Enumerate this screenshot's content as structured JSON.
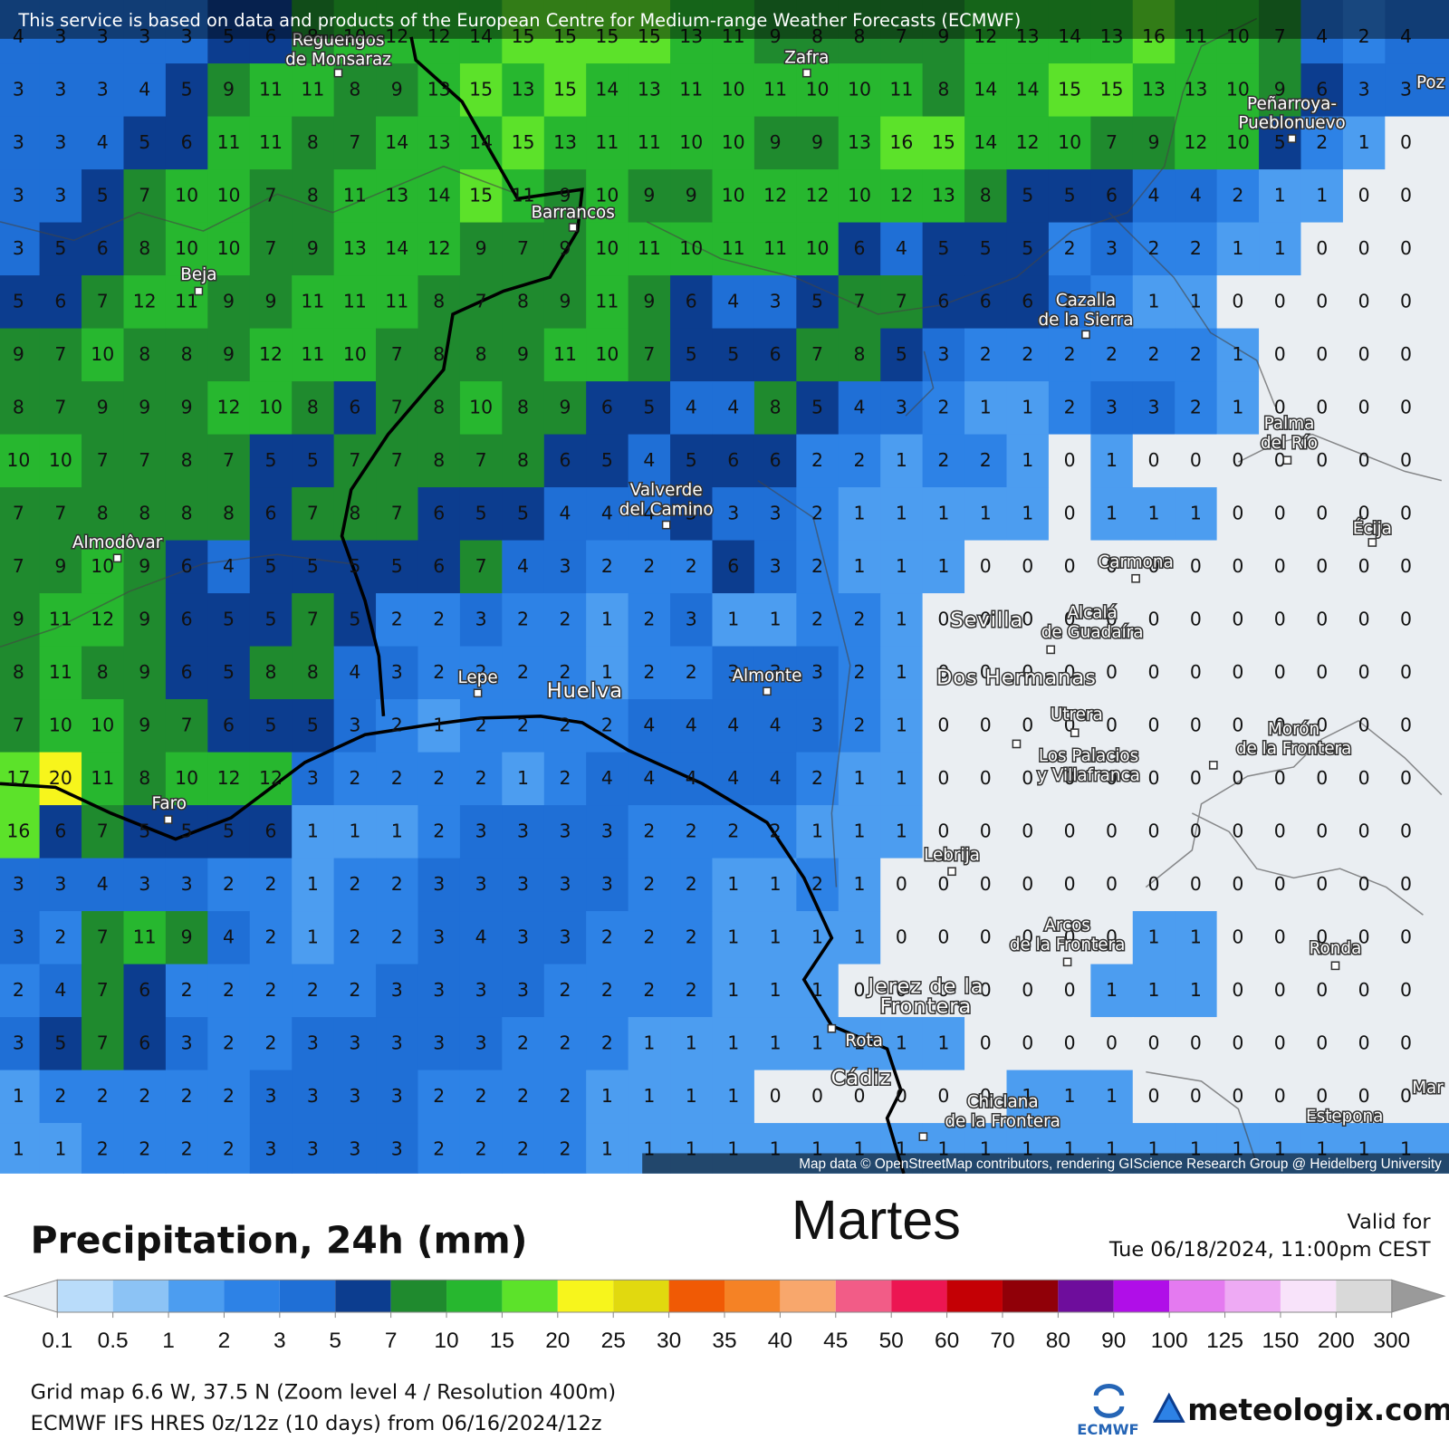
{
  "header": {
    "attribution": "This service is based on data and products of the European Centre for Medium-range Weather Forecasts (ECMWF)"
  },
  "map": {
    "credit": "Map data © OpenStreetMap contributors, rendering GIScience Research Group @ Heidelberg University",
    "grid": [
      [
        4,
        3,
        3,
        3,
        3,
        5,
        6,
        8,
        10,
        12,
        12,
        14,
        15,
        15,
        15,
        15,
        13,
        11,
        9,
        8,
        8,
        7,
        9,
        12,
        13,
        14,
        13,
        16,
        11,
        10,
        7,
        4,
        2,
        4
      ],
      [
        3,
        3,
        3,
        4,
        5,
        9,
        11,
        11,
        8,
        9,
        13,
        15,
        13,
        15,
        14,
        13,
        11,
        10,
        11,
        10,
        10,
        11,
        8,
        14,
        14,
        15,
        15,
        13,
        13,
        10,
        9,
        6,
        3,
        3
      ],
      [
        3,
        3,
        4,
        5,
        6,
        11,
        11,
        8,
        7,
        14,
        13,
        14,
        15,
        13,
        11,
        11,
        10,
        10,
        9,
        9,
        13,
        16,
        15,
        14,
        12,
        10,
        7,
        9,
        12,
        10,
        5,
        2,
        1,
        0
      ],
      [
        3,
        3,
        5,
        7,
        10,
        10,
        7,
        8,
        11,
        13,
        14,
        15,
        11,
        9,
        10,
        9,
        9,
        10,
        12,
        12,
        10,
        12,
        13,
        8,
        5,
        5,
        6,
        4,
        4,
        2,
        1,
        1,
        0,
        0
      ],
      [
        3,
        5,
        6,
        8,
        10,
        10,
        7,
        9,
        13,
        14,
        12,
        9,
        7,
        9,
        10,
        11,
        10,
        11,
        11,
        10,
        6,
        4,
        5,
        5,
        5,
        2,
        3,
        2,
        2,
        1,
        1,
        0,
        0,
        0
      ],
      [
        5,
        6,
        7,
        12,
        11,
        9,
        9,
        11,
        11,
        11,
        8,
        7,
        8,
        9,
        11,
        9,
        6,
        4,
        3,
        5,
        7,
        7,
        6,
        6,
        6,
        3,
        2,
        1,
        1,
        0,
        0,
        0,
        0,
        0
      ],
      [
        9,
        7,
        10,
        8,
        8,
        9,
        12,
        11,
        10,
        7,
        8,
        8,
        9,
        11,
        10,
        7,
        5,
        5,
        6,
        7,
        8,
        5,
        3,
        2,
        2,
        2,
        2,
        2,
        2,
        1,
        0,
        0,
        0,
        0
      ],
      [
        8,
        7,
        9,
        9,
        9,
        12,
        10,
        8,
        6,
        7,
        8,
        10,
        8,
        9,
        6,
        5,
        4,
        4,
        8,
        5,
        4,
        3,
        2,
        1,
        1,
        2,
        3,
        3,
        2,
        1,
        0,
        0,
        0,
        0
      ],
      [
        10,
        10,
        7,
        7,
        8,
        7,
        5,
        5,
        7,
        7,
        8,
        7,
        8,
        6,
        5,
        4,
        5,
        6,
        6,
        2,
        2,
        1,
        2,
        2,
        1,
        0,
        1,
        0,
        0,
        0,
        0,
        0,
        0,
        0
      ],
      [
        7,
        7,
        8,
        8,
        8,
        8,
        6,
        7,
        8,
        7,
        6,
        5,
        5,
        4,
        4,
        4,
        5,
        3,
        3,
        2,
        1,
        1,
        1,
        1,
        1,
        0,
        1,
        1,
        1,
        0,
        0,
        0,
        0,
        0
      ],
      [
        7,
        9,
        10,
        9,
        6,
        4,
        5,
        5,
        5,
        5,
        6,
        7,
        4,
        3,
        2,
        2,
        2,
        6,
        3,
        2,
        1,
        1,
        1,
        0,
        0,
        0,
        0,
        0,
        0,
        0,
        0,
        0,
        0,
        0
      ],
      [
        9,
        11,
        12,
        9,
        6,
        5,
        5,
        7,
        5,
        2,
        2,
        3,
        2,
        2,
        1,
        2,
        3,
        1,
        1,
        2,
        2,
        1,
        0,
        0,
        0,
        0,
        0,
        0,
        0,
        0,
        0,
        0,
        0,
        0
      ],
      [
        8,
        11,
        8,
        9,
        6,
        5,
        8,
        8,
        4,
        3,
        2,
        2,
        2,
        2,
        1,
        2,
        2,
        3,
        3,
        3,
        2,
        1,
        0,
        0,
        0,
        0,
        0,
        0,
        0,
        0,
        0,
        0,
        0,
        0
      ],
      [
        7,
        10,
        10,
        9,
        7,
        6,
        5,
        5,
        3,
        2,
        1,
        2,
        2,
        2,
        2,
        4,
        4,
        4,
        4,
        3,
        2,
        1,
        0,
        0,
        0,
        0,
        0,
        0,
        0,
        0,
        0,
        0,
        0,
        0
      ],
      [
        17,
        20,
        11,
        8,
        10,
        12,
        12,
        3,
        2,
        2,
        2,
        2,
        1,
        2,
        4,
        4,
        4,
        4,
        4,
        2,
        1,
        1,
        0,
        0,
        0,
        0,
        0,
        0,
        0,
        0,
        0,
        0,
        0,
        0
      ],
      [
        16,
        6,
        7,
        5,
        5,
        5,
        6,
        1,
        1,
        1,
        2,
        3,
        3,
        3,
        3,
        2,
        2,
        2,
        2,
        1,
        1,
        1,
        0,
        0,
        0,
        0,
        0,
        0,
        0,
        0,
        0,
        0,
        0,
        0
      ],
      [
        3,
        3,
        4,
        3,
        3,
        2,
        2,
        1,
        2,
        2,
        3,
        3,
        3,
        3,
        3,
        2,
        2,
        1,
        1,
        2,
        1,
        0,
        0,
        0,
        0,
        0,
        0,
        0,
        0,
        0,
        0,
        0,
        0,
        0
      ],
      [
        3,
        2,
        7,
        11,
        9,
        4,
        2,
        1,
        2,
        2,
        3,
        4,
        3,
        3,
        2,
        2,
        2,
        1,
        1,
        1,
        1,
        0,
        0,
        0,
        0,
        0,
        0,
        1,
        1,
        0,
        0,
        0,
        0,
        0
      ],
      [
        2,
        4,
        7,
        6,
        2,
        2,
        2,
        2,
        2,
        3,
        3,
        3,
        3,
        2,
        2,
        2,
        2,
        1,
        1,
        1,
        0,
        0,
        0,
        0,
        0,
        0,
        1,
        1,
        1,
        0,
        0,
        0,
        0,
        0
      ],
      [
        3,
        5,
        7,
        6,
        3,
        2,
        2,
        3,
        3,
        3,
        3,
        3,
        2,
        2,
        2,
        1,
        1,
        1,
        1,
        1,
        1,
        1,
        1,
        0,
        0,
        0,
        0,
        0,
        0,
        0,
        0,
        0,
        0,
        0
      ],
      [
        1,
        2,
        2,
        2,
        2,
        2,
        3,
        3,
        3,
        3,
        2,
        2,
        2,
        2,
        1,
        1,
        1,
        1,
        0,
        0,
        0,
        0,
        0,
        0,
        1,
        1,
        1,
        0,
        0,
        0,
        0,
        0,
        0,
        0
      ],
      [
        1,
        1,
        2,
        2,
        2,
        2,
        3,
        3,
        3,
        3,
        2,
        2,
        2,
        2,
        1,
        1,
        1,
        1,
        1,
        1,
        1,
        1,
        1,
        1,
        1,
        1,
        1,
        1,
        1,
        1,
        1,
        1,
        1,
        1
      ]
    ],
    "places": [
      [
        "Reguengos",
        "de Monsaraz"
      ],
      [
        "Zafra"
      ],
      [
        "Peñarroya-",
        "Pueblonuevo"
      ],
      [
        "Barrancos"
      ],
      [
        "Beja"
      ],
      [
        "Cazalla",
        "de la Sierra"
      ],
      [
        "Palma",
        "del Río"
      ],
      [
        "Valverde",
        "del Camino"
      ],
      [
        "Écija"
      ],
      [
        "Almodôvar"
      ],
      [
        "Carmona"
      ],
      [
        "Sevilla"
      ],
      [
        "Alcalá",
        "de Guadaíra"
      ],
      [
        "Lepe"
      ],
      [
        "Huelva"
      ],
      [
        "Almonte"
      ],
      [
        "Dos Hermanas"
      ],
      [
        "Utrera"
      ],
      [
        "Morón",
        "de la Frontera"
      ],
      [
        "Los Palacios",
        "y Villafranca"
      ],
      [
        "Faro"
      ],
      [
        "Lebrija"
      ],
      [
        "Arcos",
        "de la Frontera"
      ],
      [
        "Ronda"
      ],
      [
        "Jerez de la",
        "Frontera"
      ],
      [
        "Rota"
      ],
      [
        "Cádiz"
      ],
      [
        "Chiclana",
        "de la Frontera"
      ],
      [
        "Estepona"
      ],
      [
        "Poz"
      ],
      [
        "Mar"
      ]
    ]
  },
  "panel": {
    "title": "Precipitation, 24h (mm)",
    "day": "Martes",
    "valid_label": "Valid for",
    "valid_time": "Tue 06/18/2024, 11:00pm CEST"
  },
  "legend": {
    "thresholds": [
      0.1,
      0.5,
      1,
      2,
      3,
      5,
      7,
      10,
      15,
      20,
      25,
      30,
      35,
      40,
      45,
      50,
      60,
      70,
      80,
      90,
      100,
      125,
      150,
      200,
      300
    ],
    "colors": [
      "#b9dcfa",
      "#8cc3f5",
      "#4c9df0",
      "#2d82e6",
      "#1f6fd6",
      "#0c3d8f",
      "#1f8a2e",
      "#27b72f",
      "#5ce22a",
      "#f7f51c",
      "#e1d90f",
      "#f05a05",
      "#f58225",
      "#f8a76c",
      "#f25c87",
      "#ec1652",
      "#c40005",
      "#900008",
      "#6e0d9c",
      "#b00ee8",
      "#e47af0",
      "#eeaaf4",
      "#f8e3fa",
      "#d9d9d9"
    ],
    "below_color": "#eaeef2",
    "above_color": "#9a9a9a"
  },
  "footer": {
    "grid_info": "Grid map 6.6 W, 37.5 N (Zoom level 4 / Resolution 400m)",
    "model_info": "ECMWF IFS HRES 0z/12z (10 days) from 06/16/2024/12z",
    "ecmwf": "ECMWF",
    "brand": "meteologix.com"
  }
}
